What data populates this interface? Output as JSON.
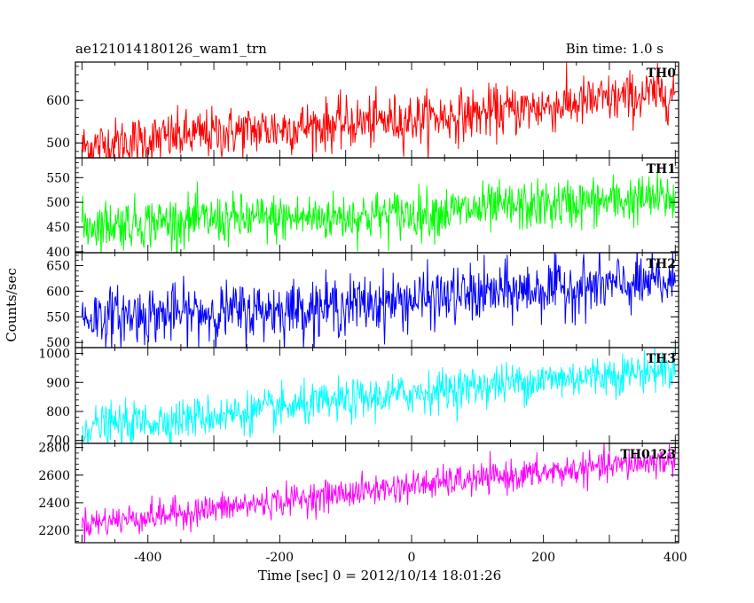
{
  "chart_data": {
    "type": "line",
    "title": "ae121014180126_wam1_trn",
    "bin_time_label": "Bin time: 1.0 s",
    "xlabel": "Time [sec] 0 = 2012/10/14 18:01:26",
    "ylabel": "Counts/sec",
    "xlim": [
      -510,
      405
    ],
    "x_ticks": [
      -400,
      -200,
      0,
      200,
      400
    ],
    "x_range": [
      -500,
      400
    ],
    "x_step": 1,
    "grid": false,
    "series": [
      {
        "name": "TH0",
        "color": "#ff0000",
        "ylim": [
          465,
          690
        ],
        "y_ticks": [
          500,
          600
        ],
        "start": 490,
        "end": 615,
        "noise": 30
      },
      {
        "name": "TH1",
        "color": "#00ff00",
        "ylim": [
          398,
          590
        ],
        "y_ticks": [
          400,
          450,
          500,
          550
        ],
        "start": 450,
        "end": 505,
        "noise": 25
      },
      {
        "name": "TH2",
        "color": "#0000ff",
        "ylim": [
          490,
          675
        ],
        "y_ticks": [
          500,
          550,
          600,
          650
        ],
        "start": 545,
        "end": 615,
        "noise": 28
      },
      {
        "name": "TH3",
        "color": "#00ffff",
        "ylim": [
          690,
          1020
        ],
        "y_ticks": [
          700,
          800,
          900,
          1000
        ],
        "start": 745,
        "end": 950,
        "noise": 35
      },
      {
        "name": "TH0123",
        "color": "#ff00ff",
        "ylim": [
          2110,
          2830
        ],
        "y_ticks": [
          2200,
          2400,
          2600,
          2800
        ],
        "start": 2255,
        "end": 2720,
        "noise": 55
      }
    ]
  }
}
